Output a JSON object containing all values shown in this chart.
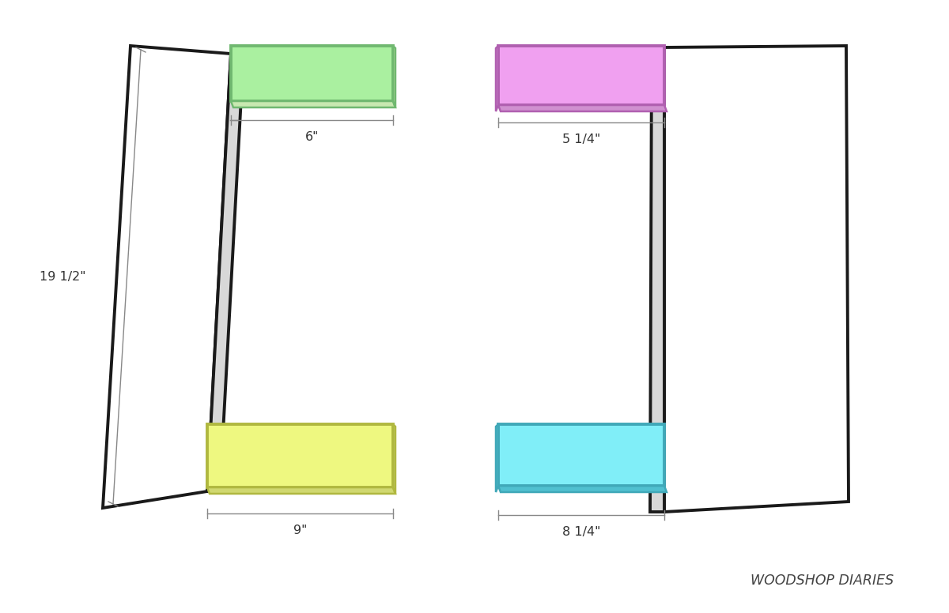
{
  "background_color": "#ffffff",
  "line_color": "#1a1a1a",
  "dim_line_color": "#888888",
  "text_color": "#333333",
  "watermark": "WOODSHOP DIARIES",
  "left_diagram": {
    "green_color": "#aaf0a0",
    "green_dark": "#70b870",
    "yellow_color": "#eef880",
    "yellow_dark": "#b0b840",
    "dim_top": "6\"",
    "dim_bottom": "9\"",
    "dim_height": "19 1/2\""
  },
  "right_diagram": {
    "pink_color": "#f0a0f0",
    "pink_dark": "#b060b0",
    "cyan_color": "#80eef8",
    "cyan_dark": "#40a8b8",
    "dim_top": "5 1/4\"",
    "dim_bottom": "8 1/4\""
  }
}
